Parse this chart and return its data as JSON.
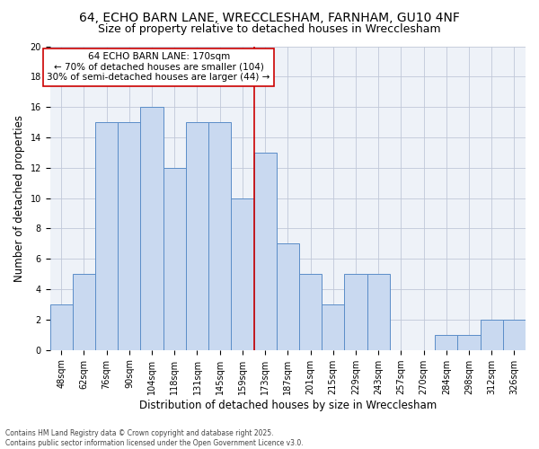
{
  "title1": "64, ECHO BARN LANE, WRECCLESHAM, FARNHAM, GU10 4NF",
  "title2": "Size of property relative to detached houses in Wrecclesham",
  "xlabel": "Distribution of detached houses by size in Wrecclesham",
  "ylabel": "Number of detached properties",
  "categories": [
    "48sqm",
    "62sqm",
    "76sqm",
    "90sqm",
    "104sqm",
    "118sqm",
    "131sqm",
    "145sqm",
    "159sqm",
    "173sqm",
    "187sqm",
    "201sqm",
    "215sqm",
    "229sqm",
    "243sqm",
    "257sqm",
    "270sqm",
    "284sqm",
    "298sqm",
    "312sqm",
    "326sqm"
  ],
  "values": [
    3,
    5,
    15,
    15,
    16,
    12,
    15,
    15,
    10,
    13,
    7,
    5,
    3,
    5,
    5,
    0,
    0,
    1,
    1,
    2,
    2
  ],
  "bar_color": "#c9d9f0",
  "bar_edge_color": "#5b8dc8",
  "vline_index": 9,
  "vline_color": "#cc0000",
  "annotation_line1": "64 ECHO BARN LANE: 170sqm",
  "annotation_line2": "← 70% of detached houses are smaller (104)",
  "annotation_line3": "30% of semi-detached houses are larger (44) →",
  "annotation_box_color": "#ffffff",
  "annotation_box_edge": "#cc0000",
  "ylim": [
    0,
    20
  ],
  "yticks": [
    0,
    2,
    4,
    6,
    8,
    10,
    12,
    14,
    16,
    18,
    20
  ],
  "grid_color": "#c0c8d8",
  "background_color": "#eef2f8",
  "footer_text": "Contains HM Land Registry data © Crown copyright and database right 2025.\nContains public sector information licensed under the Open Government Licence v3.0.",
  "title_fontsize": 10,
  "subtitle_fontsize": 9,
  "tick_fontsize": 7,
  "ylabel_fontsize": 8.5,
  "xlabel_fontsize": 8.5,
  "annotation_fontsize": 7.5,
  "footer_fontsize": 5.5
}
